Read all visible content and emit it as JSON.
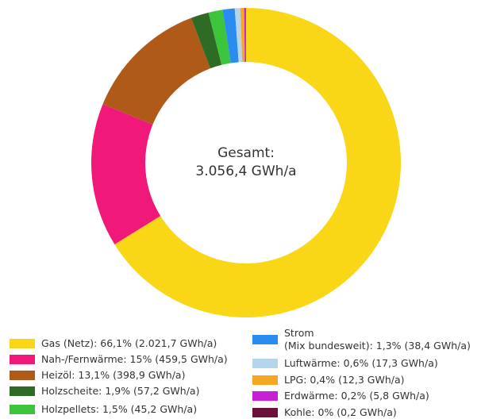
{
  "chart_data": {
    "type": "pie",
    "center_title": "Gesamt:",
    "center_value": "3.056,4 GWh/a",
    "categories": [
      "Gas (Netz): 66,1% (2.021,7 GWh/a)",
      "Nah-/Fernwärme: 15% (459,5 GWh/a)",
      "Heizöl: 13,1% (398,9 GWh/a)",
      "Holzscheite: 1,9% (57,2 GWh/a)",
      "Holzpellets: 1,5% (45,2 GWh/a)",
      "Strom\n(Mix bundesweit): 1,3% (38,4 GWh/a)",
      "Luftwärme: 0,6% (17,3 GWh/a)",
      "LPG: 0,4% (12,3 GWh/a)",
      "Erdwärme: 0,2% (5,8 GWh/a)",
      "Kohle: 0% (0,2 GWh/a)"
    ],
    "values": [
      2021.7,
      459.5,
      398.9,
      57.2,
      45.2,
      38.4,
      17.3,
      12.3,
      5.8,
      0.2
    ],
    "colors": [
      "#f9d616",
      "#f0197a",
      "#b05a1a",
      "#2e6b25",
      "#3cc43c",
      "#2a8cf0",
      "#b5d6ea",
      "#f5a623",
      "#c81fd6",
      "#6b1238"
    ],
    "donut": true
  }
}
